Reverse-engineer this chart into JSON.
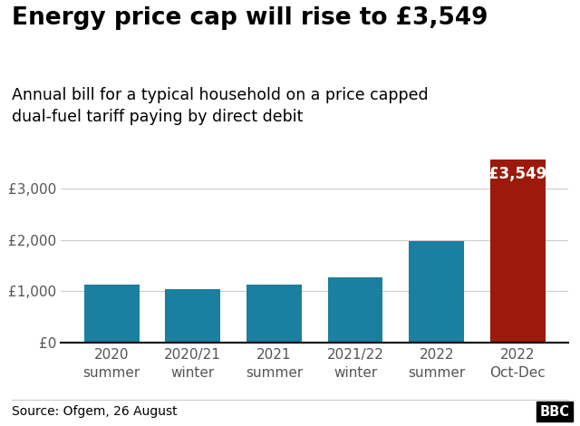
{
  "title": "Energy price cap will rise to £3,549",
  "subtitle": "Annual bill for a typical household on a price capped\ndual-fuel tariff paying by direct debit",
  "categories": [
    "2020\nsummer",
    "2020/21\nwinter",
    "2021\nsummer",
    "2021/22\nwinter",
    "2022\nsummer",
    "2022\nOct-Dec"
  ],
  "values": [
    1138,
    1042,
    1138,
    1277,
    1971,
    3549
  ],
  "bar_colors": [
    "#1a7fa0",
    "#1a7fa0",
    "#1a7fa0",
    "#1a7fa0",
    "#1a7fa0",
    "#9b1a0a"
  ],
  "highlight_label": "£3,549",
  "highlight_index": 5,
  "ylim": [
    0,
    3800
  ],
  "yticks": [
    0,
    1000,
    2000,
    3000
  ],
  "ytick_labels": [
    "£0",
    "£1,000",
    "£2,000",
    "£3,000"
  ],
  "source_text": "Source: Ofgem, 26 August",
  "bbc_text": "BBC",
  "title_fontsize": 19,
  "subtitle_fontsize": 12.5,
  "label_fontsize": 12,
  "tick_fontsize": 11,
  "source_fontsize": 10,
  "background_color": "#ffffff",
  "grid_color": "#cccccc",
  "axis_color": "#000000",
  "text_color": "#000000"
}
